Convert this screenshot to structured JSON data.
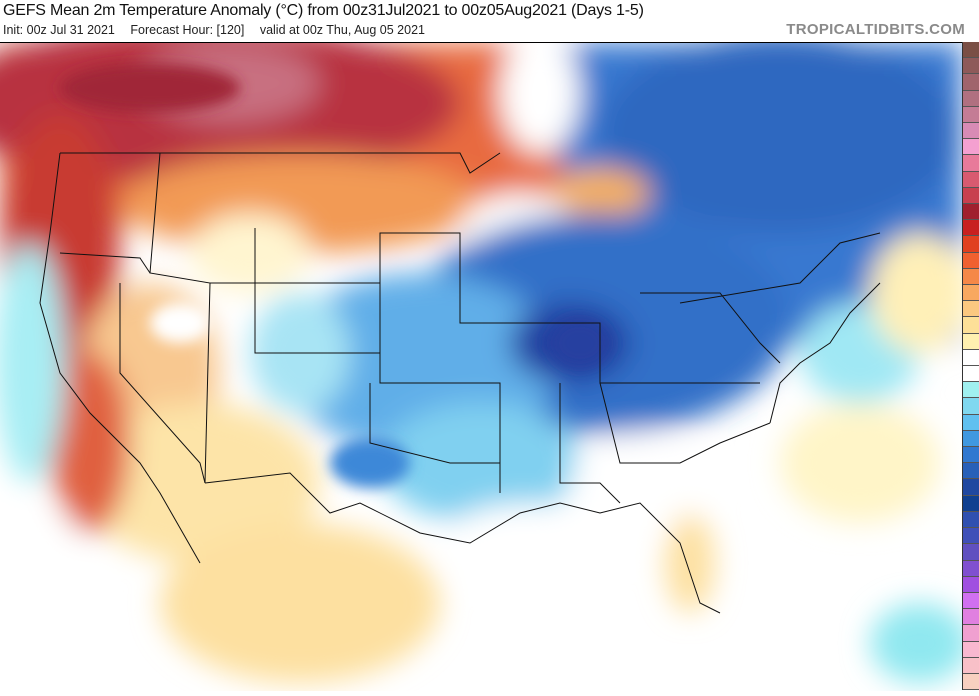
{
  "header": {
    "title": "GEFS Mean 2m Temperature Anomaly (°C) from 00z31Jul2021 to 00z05Aug2021 (Days 1-5)",
    "init": "Init: 00z Jul 31 2021",
    "forecast_hour": "Forecast Hour: [120]",
    "valid": "valid at 00z Thu, Aug 05 2021",
    "brand": "TROPICALTIDBITS.COM"
  },
  "colorbar": [
    "#7a4f45",
    "#8e5a5a",
    "#a0646c",
    "#b07080",
    "#c47c95",
    "#d88bb5",
    "#f4a0d0",
    "#e87a9a",
    "#d85a70",
    "#c8404f",
    "#a0202e",
    "#c82020",
    "#e04020",
    "#f06030",
    "#f58848",
    "#f8a860",
    "#fbc880",
    "#fde098",
    "#fff0b0",
    "#ffffff",
    "#ffffff",
    "#a0f0f0",
    "#80d8f0",
    "#60c0f0",
    "#4098e0",
    "#3078d0",
    "#2860b8",
    "#2048a0",
    "#104090",
    "#3050b0",
    "#4050b8",
    "#6050c0",
    "#8050d0",
    "#a050e0",
    "#d070f0",
    "#e080e0",
    "#f0a0d0",
    "#f8b8d0",
    "#f8c0c8",
    "#f8d0c0"
  ]
}
